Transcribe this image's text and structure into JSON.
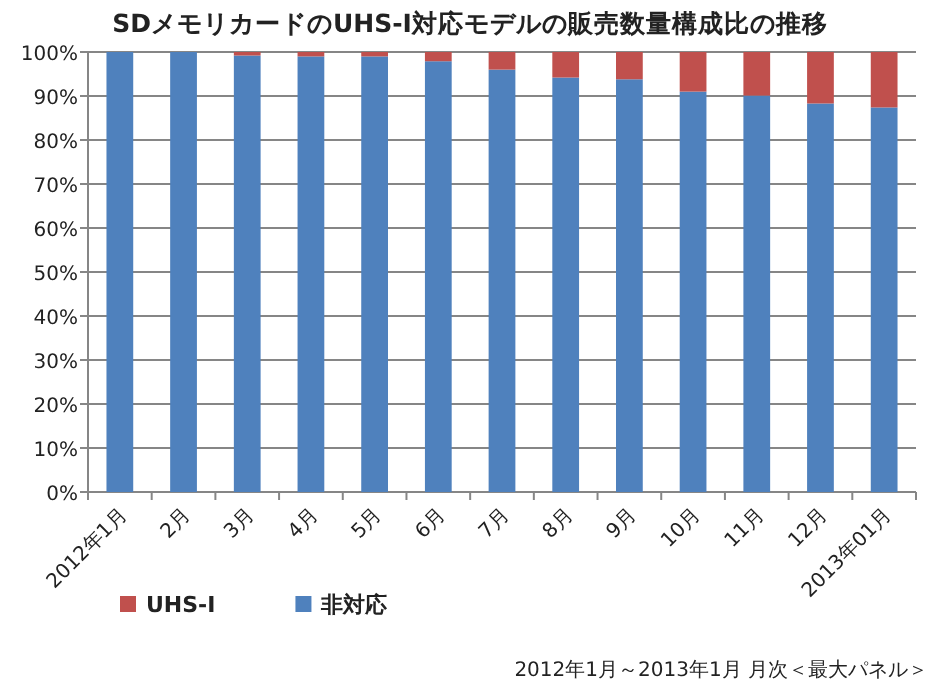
{
  "chart_data": {
    "type": "bar",
    "stacked": true,
    "title": "SDメモリカードのUHS-I対応モデルの販売数量構成比の推移",
    "categories": [
      "2012年1月",
      "2月",
      "3月",
      "4月",
      "5月",
      "6月",
      "7月",
      "8月",
      "9月",
      "10月",
      "11月",
      "12月",
      "2013年01月"
    ],
    "series": [
      {
        "name": "非対応",
        "color": "#4f81bd",
        "values": [
          100,
          100,
          99.2,
          99.0,
          99.0,
          97.9,
          96.0,
          94.2,
          93.8,
          91.0,
          90.1,
          88.3,
          87.4
        ]
      },
      {
        "name": "UHS-I",
        "color": "#c0504d",
        "values": [
          0,
          0,
          0.8,
          1.0,
          1.0,
          2.1,
          4.0,
          5.8,
          6.2,
          9.0,
          9.9,
          11.7,
          12.6
        ]
      }
    ],
    "ylim": [
      0,
      100
    ],
    "yticks": [
      {
        "value": 0,
        "label": "0%"
      },
      {
        "value": 10,
        "label": "10%"
      },
      {
        "value": 20,
        "label": "20%"
      },
      {
        "value": 30,
        "label": "30%"
      },
      {
        "value": 40,
        "label": "40%"
      },
      {
        "value": 50,
        "label": "50%"
      },
      {
        "value": 60,
        "label": "60%"
      },
      {
        "value": 70,
        "label": "70%"
      },
      {
        "value": 80,
        "label": "80%"
      },
      {
        "value": 90,
        "label": "90%"
      },
      {
        "value": 100,
        "label": "100%"
      }
    ],
    "grid": "y",
    "legend": "bottom",
    "annotations": [
      "2012年1月～2013年1月 月次＜最大パネル＞"
    ]
  }
}
